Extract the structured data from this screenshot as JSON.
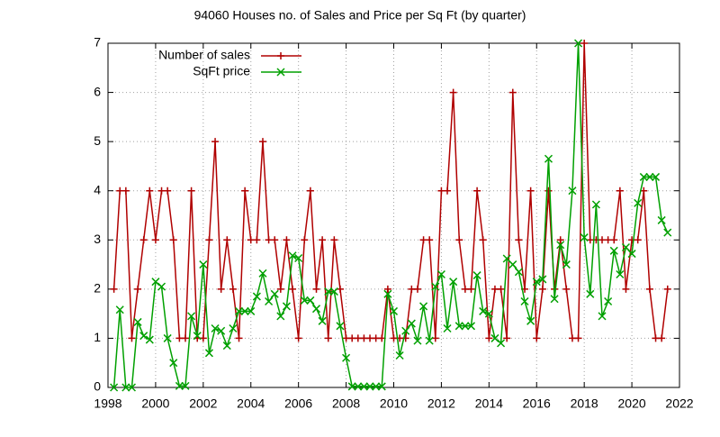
{
  "chart_data": {
    "type": "line",
    "title": "94060 Houses no. of Sales and Price per Sq Ft (by quarter)",
    "x": [
      1998.25,
      1998.5,
      1998.75,
      1999,
      1999.25,
      1999.5,
      1999.75,
      2000,
      2000.25,
      2000.5,
      2000.75,
      2001,
      2001.25,
      2001.5,
      2001.75,
      2002,
      2002.25,
      2002.5,
      2002.75,
      2003,
      2003.25,
      2003.5,
      2003.75,
      2004,
      2004.25,
      2004.5,
      2004.75,
      2005,
      2005.25,
      2005.5,
      2005.75,
      2006,
      2006.25,
      2006.5,
      2006.75,
      2007,
      2007.25,
      2007.5,
      2007.75,
      2008,
      2008.25,
      2008.5,
      2008.75,
      2009,
      2009.25,
      2009.5,
      2009.75,
      2010,
      2010.25,
      2010.5,
      2010.75,
      2011,
      2011.25,
      2011.5,
      2011.75,
      2012,
      2012.25,
      2012.5,
      2012.75,
      2013,
      2013.25,
      2013.5,
      2013.75,
      2014,
      2014.25,
      2014.5,
      2014.75,
      2015,
      2015.25,
      2015.5,
      2015.75,
      2016,
      2016.25,
      2016.5,
      2016.75,
      2017,
      2017.25,
      2017.5,
      2017.75,
      2018,
      2018.25,
      2018.5,
      2018.75,
      2019,
      2019.25,
      2019.5,
      2019.75,
      2020,
      2020.25,
      2020.5,
      2020.75,
      2021,
      2021.25,
      2021.5
    ],
    "series": [
      {
        "name": "Number of sales",
        "color": "#b00000",
        "marker": "plus",
        "values": [
          2,
          4,
          4,
          1,
          2,
          3,
          4,
          3,
          4,
          4,
          3,
          1,
          1,
          4,
          1,
          1,
          3,
          5,
          2,
          3,
          2,
          1,
          4,
          3,
          3,
          5,
          3,
          3,
          2,
          3,
          2,
          1,
          3,
          4,
          2,
          3,
          1,
          3,
          2,
          1,
          1,
          1,
          1,
          1,
          1,
          1,
          2,
          1,
          1,
          1,
          2,
          2,
          3,
          3,
          1,
          4,
          4,
          6,
          3,
          2,
          2,
          4,
          3,
          1,
          2,
          2,
          1,
          6,
          3,
          2,
          4,
          1,
          2,
          4,
          2,
          3,
          2,
          1,
          1,
          7,
          3,
          3,
          3,
          3,
          3,
          4,
          2,
          3,
          3,
          4,
          2,
          1,
          1,
          2
        ]
      },
      {
        "name": "SqFt price",
        "color": "#00a000",
        "marker": "cross",
        "values": [
          0,
          1.58,
          0,
          0,
          1.33,
          1.05,
          0.97,
          2.15,
          2.05,
          1.0,
          0.5,
          0.03,
          0.03,
          1.45,
          1.05,
          2.5,
          0.7,
          1.2,
          1.15,
          0.85,
          1.2,
          1.55,
          1.55,
          1.55,
          1.85,
          2.32,
          1.75,
          1.9,
          1.45,
          1.65,
          2.68,
          2.63,
          1.77,
          1.77,
          1.6,
          1.35,
          1.95,
          1.95,
          1.25,
          0.6,
          0.02,
          0.02,
          0.02,
          0.02,
          0.02,
          0.02,
          1.9,
          1.55,
          0.65,
          1.15,
          1.3,
          0.95,
          1.65,
          0.95,
          2.05,
          2.3,
          1.2,
          2.15,
          1.25,
          1.25,
          1.25,
          2.28,
          1.55,
          1.5,
          1.0,
          0.9,
          2.62,
          2.5,
          2.35,
          1.75,
          1.35,
          2.15,
          2.2,
          4.65,
          1.8,
          2.9,
          2.5,
          4.0,
          7.0,
          3.05,
          1.9,
          3.72,
          1.45,
          1.75,
          2.78,
          2.3,
          2.85,
          2.72,
          3.75,
          4.28,
          4.28,
          4.28,
          3.4,
          3.15
        ]
      }
    ],
    "xlim": [
      1998,
      2022
    ],
    "xticks": [
      1998,
      2000,
      2002,
      2004,
      2006,
      2008,
      2010,
      2012,
      2014,
      2016,
      2018,
      2020,
      2022
    ],
    "ylim": [
      0,
      7
    ],
    "yticks": [
      0,
      1,
      2,
      3,
      4,
      5,
      6,
      7
    ],
    "grid": true,
    "legend": "top-left"
  }
}
